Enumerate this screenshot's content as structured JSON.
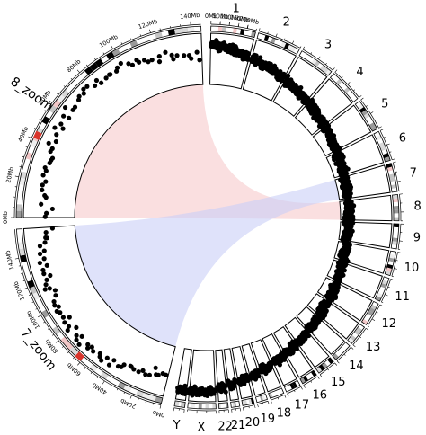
{
  "chart_data": {
    "type": "scatter",
    "layout": "circos",
    "chromosomes": [
      "1",
      "2",
      "3",
      "4",
      "5",
      "6",
      "7",
      "8",
      "9",
      "10",
      "11",
      "12",
      "13",
      "14",
      "15",
      "16",
      "17",
      "18",
      "19",
      "20",
      "21",
      "22",
      "X",
      "Y"
    ],
    "zoom_sectors": [
      {
        "name": "7_zoom",
        "tick_labels": [
          "0Mb",
          "20Mb",
          "40Mb",
          "60Mb",
          "80Mb",
          "100Mb",
          "120Mb",
          "140Mb"
        ]
      },
      {
        "name": "8_zoom",
        "tick_labels": [
          "0Mb",
          "20Mb",
          "40Mb",
          "60Mb",
          "80Mb",
          "100Mb",
          "120Mb",
          "140Mb"
        ]
      }
    ],
    "chr1_tick_labels": [
      "0Mb",
      "50Mb",
      "100Mb",
      "150Mb",
      "200Mb"
    ],
    "links": [
      {
        "from": "8",
        "to": "8_zoom",
        "color": "#f6c9cc"
      },
      {
        "from": "7",
        "to": "7_zoom",
        "color": "#c9cff6"
      }
    ],
    "point_color": "#000000",
    "highlight_color": "#d9342b"
  }
}
